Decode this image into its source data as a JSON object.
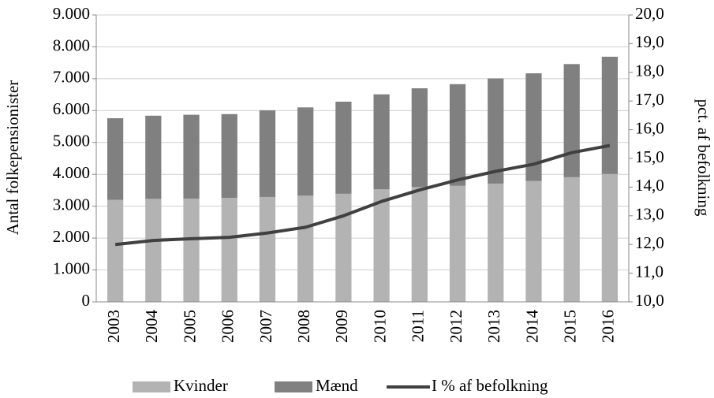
{
  "chart_data": {
    "type": "bar",
    "stacked": true,
    "categories": [
      "2003",
      "2004",
      "2005",
      "2006",
      "2007",
      "2008",
      "2009",
      "2010",
      "2011",
      "2012",
      "2013",
      "2014",
      "2015",
      "2016"
    ],
    "series": [
      {
        "name": "Kvinder",
        "color": "#b3b3b3",
        "values": [
          3200,
          3230,
          3240,
          3260,
          3290,
          3330,
          3390,
          3530,
          3600,
          3640,
          3710,
          3790,
          3910,
          4010
        ]
      },
      {
        "name": "Mænd",
        "color": "#808080",
        "values": [
          2560,
          2610,
          2630,
          2630,
          2720,
          2770,
          2890,
          2980,
          3100,
          3190,
          3300,
          3380,
          3550,
          3680
        ]
      },
      {
        "name": "I % af befolkning",
        "type": "line",
        "axis": "y2",
        "color": "#404040",
        "values": [
          12.0,
          12.14,
          12.2,
          12.25,
          12.4,
          12.6,
          13.0,
          13.5,
          13.9,
          14.25,
          14.55,
          14.8,
          15.2,
          15.45
        ]
      }
    ],
    "ylabel": "Antal folkepensionister",
    "y2label": "pct. af befolkning",
    "ylim": [
      0,
      9000
    ],
    "yticks": [
      0,
      {
        "value": 1000,
        "label": "1.000"
      },
      {
        "value": 2000,
        "label": "2.000"
      },
      {
        "value": 3000,
        "label": "3.000"
      },
      {
        "value": 4000,
        "label": "4.000"
      },
      {
        "value": 5000,
        "label": "5.000"
      },
      {
        "value": 6000,
        "label": "6.000"
      },
      {
        "value": 7000,
        "label": "7.000"
      },
      {
        "value": 8000,
        "label": "8.000"
      },
      {
        "value": 9000,
        "label": "9.000"
      }
    ],
    "y2lim": [
      10,
      20
    ],
    "y2ticks": [
      {
        "value": 10,
        "label": "10,0"
      },
      {
        "value": 11,
        "label": "11,0"
      },
      {
        "value": 12,
        "label": "12,0"
      },
      {
        "value": 13,
        "label": "13,0"
      },
      {
        "value": 14,
        "label": "14,0"
      },
      {
        "value": 15,
        "label": "15,0"
      },
      {
        "value": 16,
        "label": "16,0"
      },
      {
        "value": 17,
        "label": "17,0"
      },
      {
        "value": 18,
        "label": "18,0"
      },
      {
        "value": 19,
        "label": "19,0"
      },
      {
        "value": 20,
        "label": "20,0"
      }
    ],
    "grid": true,
    "legend": "bottom"
  }
}
